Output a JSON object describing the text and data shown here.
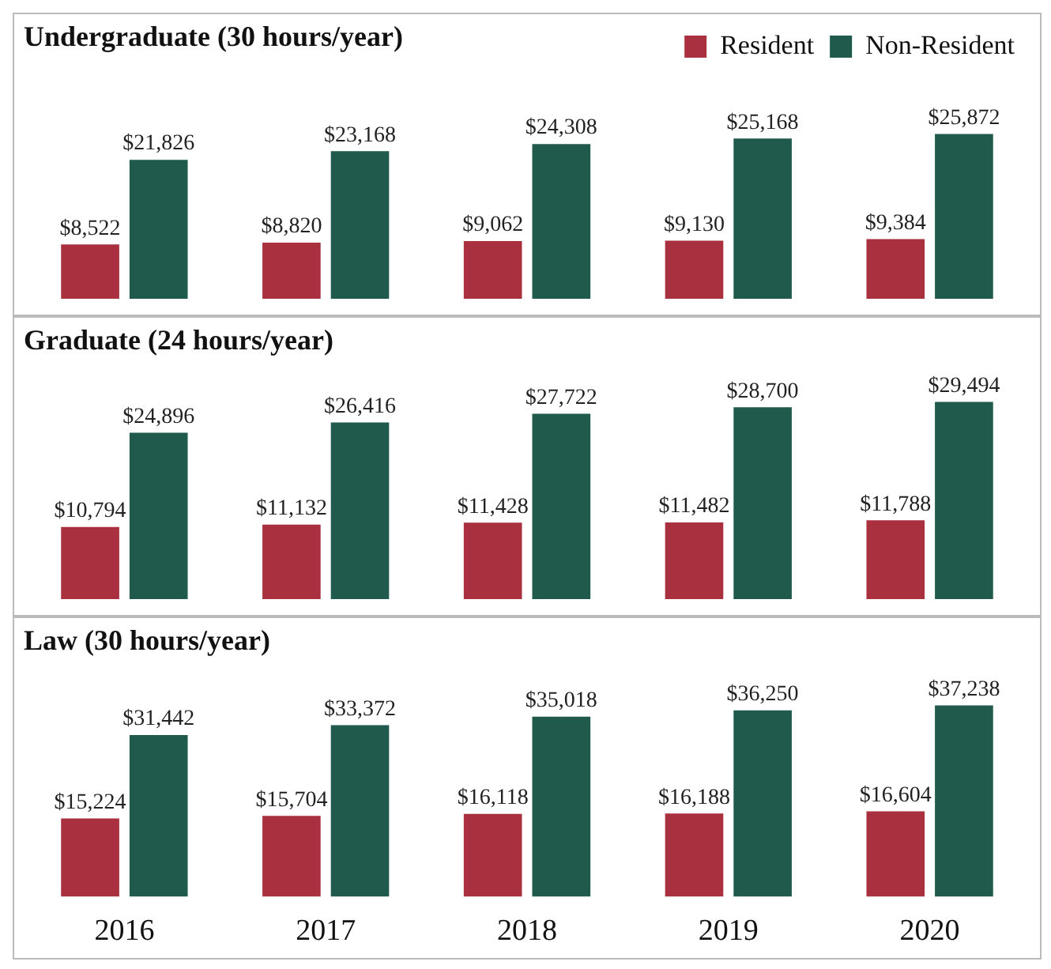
{
  "chart_data": [
    {
      "type": "bar",
      "title": "Undergraduate (30 hours/year)",
      "categories": [
        "2016",
        "2017",
        "2018",
        "2019",
        "2020"
      ],
      "legend": "top right",
      "tick_labels": false,
      "series": [
        {
          "name": "Resident",
          "color": "#a8303f",
          "values": [
            8522,
            8820,
            9062,
            9130,
            9384
          ],
          "value_labels": [
            "$8,522",
            "$8,820",
            "$9,062",
            "$9,130",
            "$9,384"
          ]
        },
        {
          "name": "Non-Resident",
          "color": "#1f5a4c",
          "values": [
            21826,
            23168,
            24308,
            25168,
            25872
          ],
          "value_labels": [
            "$21,826",
            "$23,168",
            "$24,308",
            "$25,168",
            "$25,872"
          ]
        }
      ]
    },
    {
      "type": "bar",
      "title": "Graduate (24 hours/year)",
      "categories": [
        "2016",
        "2017",
        "2018",
        "2019",
        "2020"
      ],
      "tick_labels": false,
      "series": [
        {
          "color": "#a8303f",
          "values": [
            10794,
            11132,
            11428,
            11482,
            11788
          ],
          "value_labels": [
            "$10,794",
            "$11,132",
            "$11,428",
            "$11,482",
            "$11,788"
          ]
        },
        {
          "color": "#1f5a4c",
          "values": [
            24896,
            26416,
            27722,
            28700,
            29494
          ],
          "value_labels": [
            "$24,896",
            "$26,416",
            "$27,722",
            "$28,700",
            "$29,494"
          ]
        }
      ]
    },
    {
      "type": "bar",
      "title": "Law (30 hours/year)",
      "categories": [
        "2016",
        "2017",
        "2018",
        "2019",
        "2020"
      ],
      "tick_labels": "x",
      "series": [
        {
          "color": "#a8303f",
          "values": [
            15224,
            15704,
            16118,
            16188,
            16604
          ],
          "value_labels": [
            "$15,224",
            "$15,704",
            "$16,118",
            "$16,188",
            "$16,604"
          ]
        },
        {
          "color": "#1f5a4c",
          "values": [
            31442,
            33372,
            35018,
            36250,
            37238
          ],
          "value_labels": [
            "$31,442",
            "$33,372",
            "$35,018",
            "$36,250",
            "$37,238"
          ]
        }
      ]
    }
  ]
}
